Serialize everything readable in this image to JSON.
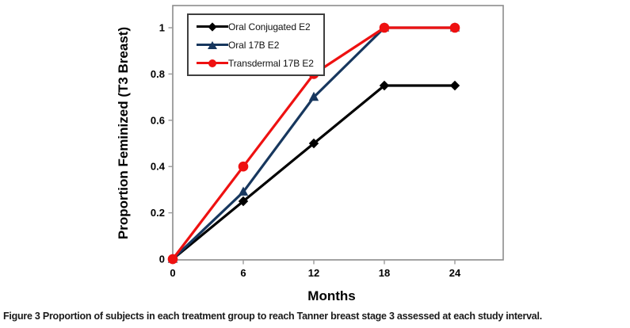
{
  "figure": {
    "caption_label": "Figure 3",
    "caption_text": "Proportion of subjects in each treatment group to reach Tanner breast stage 3 assessed at each study interval."
  },
  "chart_data": {
    "type": "line",
    "title": "",
    "xlabel": "Months",
    "ylabel": "Proportion Feminized (T3 Breast)",
    "x": [
      0,
      6,
      12,
      18,
      24
    ],
    "x_ticks": [
      0,
      6,
      12,
      18,
      24
    ],
    "y_ticks": [
      0,
      0.2,
      0.4,
      0.6,
      0.8,
      1
    ],
    "xlim": [
      0,
      28
    ],
    "ylim": [
      0,
      1.1
    ],
    "grid": false,
    "legend_position": "top-left",
    "frame_color": "#8c8c8c",
    "series": [
      {
        "name": "Oral Conjugated E2",
        "color": "#000000",
        "marker": "diamond",
        "values": [
          0,
          0.25,
          0.5,
          0.75,
          0.75
        ]
      },
      {
        "name": "Oral 17B E2",
        "color": "#17375e",
        "marker": "triangle",
        "values": [
          0,
          0.29,
          0.7,
          1.0,
          1.0
        ]
      },
      {
        "name": "Transdermal 17B E2",
        "color": "#ee1111",
        "marker": "circle",
        "values": [
          0,
          0.4,
          0.8,
          1.0,
          1.0
        ]
      }
    ]
  }
}
